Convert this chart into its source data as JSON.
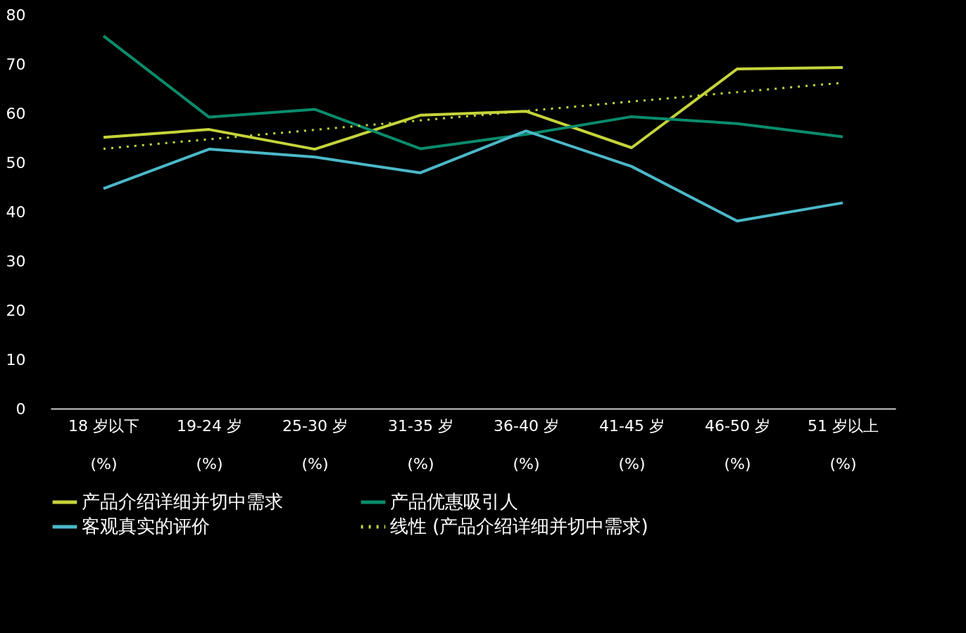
{
  "chart_data": {
    "type": "line",
    "categories": [
      "18 岁以下\n(%)",
      "19-24 岁\n(%)",
      "25-30 岁\n(%)",
      "31-35 岁\n(%)",
      "36-40 岁\n(%)",
      "41-45 岁\n(%)",
      "46-50 岁\n(%)",
      "51 岁以上\n(%)"
    ],
    "ylim": [
      0,
      80
    ],
    "yticks": [
      0,
      10,
      20,
      30,
      40,
      50,
      60,
      70,
      80
    ],
    "grid": false,
    "legend": "bottom",
    "marker": "none",
    "series": [
      {
        "name": "产品介绍详细并切中需求",
        "color": "#c5d43a",
        "line_style": "solid",
        "values": [
          55.1,
          56.7,
          52.7,
          59.6,
          60.4,
          53.0,
          69.0,
          69.3
        ]
      },
      {
        "name": "产品优惠吸引人",
        "color": "#0a8c6c",
        "line_style": "solid",
        "values": [
          75.7,
          59.2,
          60.8,
          52.8,
          55.7,
          59.3,
          57.9,
          55.2
        ]
      },
      {
        "name": "客观真实的评价",
        "color": "#4bb8c8",
        "line_style": "solid",
        "values": [
          44.7,
          52.7,
          51.1,
          47.9,
          56.4,
          49.2,
          38.1,
          41.8
        ]
      },
      {
        "name": "线性 (产品介绍详细并切中需求)",
        "color": "#c5d43a",
        "line_style": "dotted",
        "x": [
          "18 岁以下\n(%)",
          "51 岁以上\n(%)"
        ],
        "values": [
          52.8,
          66.2
        ]
      }
    ]
  }
}
